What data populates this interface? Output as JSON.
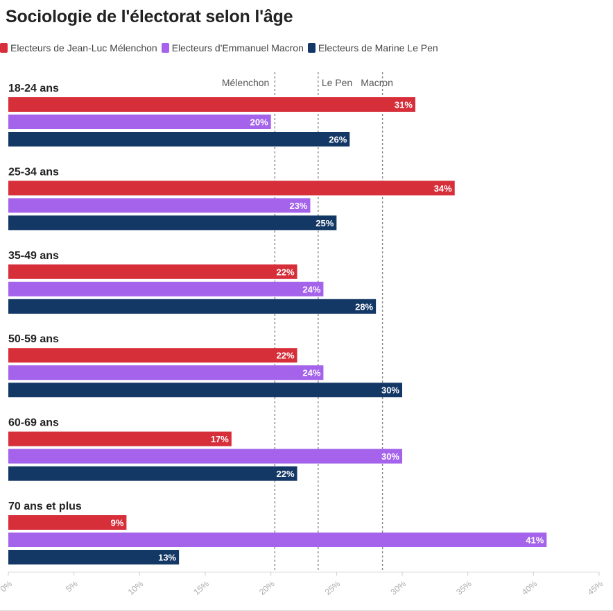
{
  "chart_data": {
    "type": "bar",
    "orientation": "horizontal",
    "title": "Sociologie de l'électorat selon l'âge",
    "categories": [
      "18-24 ans",
      "25-34 ans",
      "35-49 ans",
      "50-59 ans",
      "60-69 ans",
      "70 ans et plus"
    ],
    "series": [
      {
        "name": "Electeurs de Jean-Luc Mélenchon",
        "color": "#d62f3a",
        "values": [
          31,
          34,
          22,
          22,
          17,
          9
        ]
      },
      {
        "name": "Electeurs d'Emmanuel Macron",
        "color": "#a463ea",
        "values": [
          20,
          23,
          24,
          24,
          30,
          41
        ]
      },
      {
        "name": "Electeurs de Marine Le Pen",
        "color": "#143865",
        "values": [
          26,
          25,
          28,
          30,
          22,
          13
        ]
      }
    ],
    "value_suffix": "%",
    "xlim": [
      0,
      45
    ],
    "xticks": [
      "0%",
      "5%",
      "10%",
      "15%",
      "20%",
      "25%",
      "30%",
      "35%",
      "40%",
      "45%"
    ],
    "reference_lines": [
      {
        "label": "Mélenchon",
        "value": 20.3
      },
      {
        "label": "Le Pen",
        "value": 23.6
      },
      {
        "label": "Macron",
        "value": 28.5
      }
    ],
    "legend_position": "top-left",
    "grid": false
  }
}
